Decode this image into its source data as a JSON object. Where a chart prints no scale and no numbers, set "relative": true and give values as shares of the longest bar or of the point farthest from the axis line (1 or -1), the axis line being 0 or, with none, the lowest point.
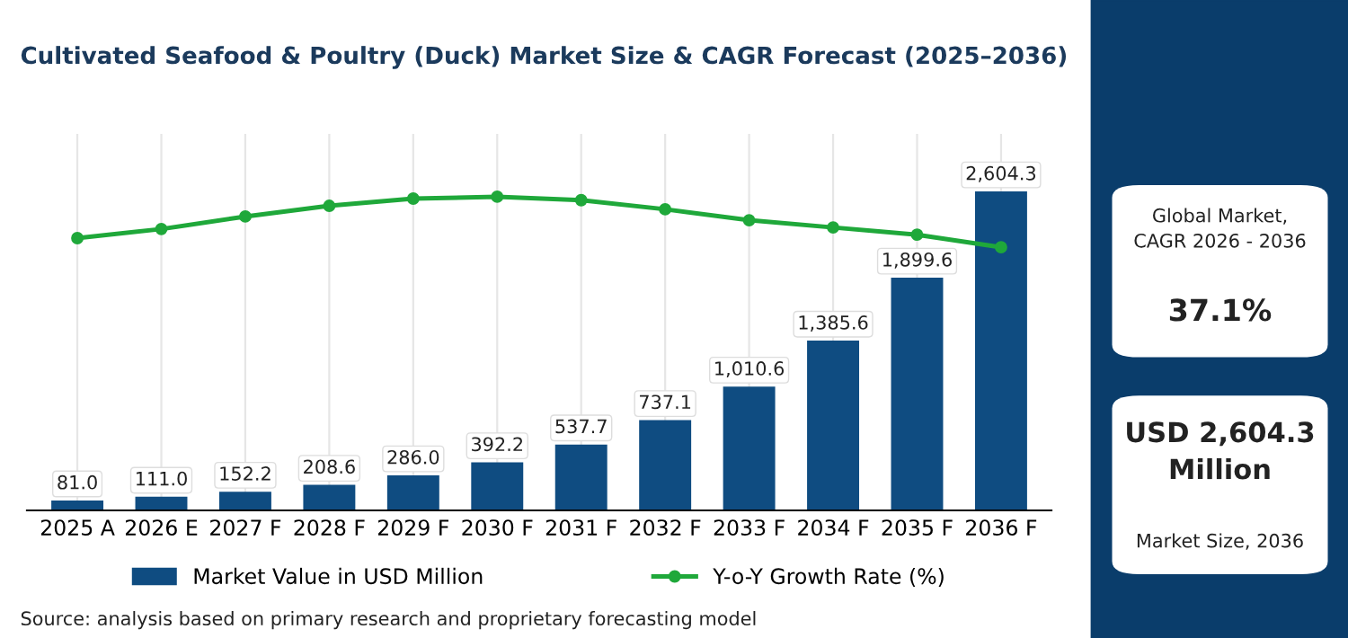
{
  "chart_data": [
    {
      "type": "bar",
      "title": "Cultivated Seafood & Poultry (Duck) Market Size & CAGR Forecast (2025–2036)",
      "categories": [
        "2025 A",
        "2026 E",
        "2027 F",
        "2028 F",
        "2029 F",
        "2030 F",
        "2031 F",
        "2032 F",
        "2033 F",
        "2034 F",
        "2035 F",
        "2036 F"
      ],
      "series": [
        {
          "name": "Market Value in USD Million",
          "type": "bar",
          "color": "#0f4c81",
          "values": [
            81.0,
            111.0,
            152.2,
            208.6,
            286.0,
            392.2,
            537.7,
            737.1,
            1010.6,
            1385.6,
            1899.6,
            2604.3
          ],
          "value_labels": [
            "81.0",
            "111.0",
            "152.2",
            "208.6",
            "286.0",
            "392.2",
            "537.7",
            "737.1",
            "1,010.6",
            "1,385.6",
            "1,899.6",
            "2,604.3"
          ]
        }
      ],
      "grid": "x",
      "legend": "bottom",
      "annotations": [
        "Source: analysis based on primary research and proprietary forecasting model",
        "Global Market, CAGR 2026 - 2036",
        "37.1%",
        "USD 2,604.3 Million",
        "Market Size, 2036"
      ]
    },
    {
      "type": "line",
      "relative": true,
      "categories": [
        "2025 A",
        "2026 E",
        "2027 F",
        "2028 F",
        "2029 F",
        "2030 F",
        "2031 F",
        "2032 F",
        "2033 F",
        "2034 F",
        "2035 F",
        "2036 F"
      ],
      "legend": "bottom",
      "marker": "circle",
      "tick_labels": false,
      "series": [
        {
          "name": "Y-o-Y Growth Rate (%)",
          "color": "#1fa83a",
          "values": [
            0.868,
            0.897,
            0.937,
            0.971,
            0.994,
            1,
            0.989,
            0.96,
            0.925,
            0.902,
            0.879,
            0.839
          ]
        }
      ]
    }
  ]
}
